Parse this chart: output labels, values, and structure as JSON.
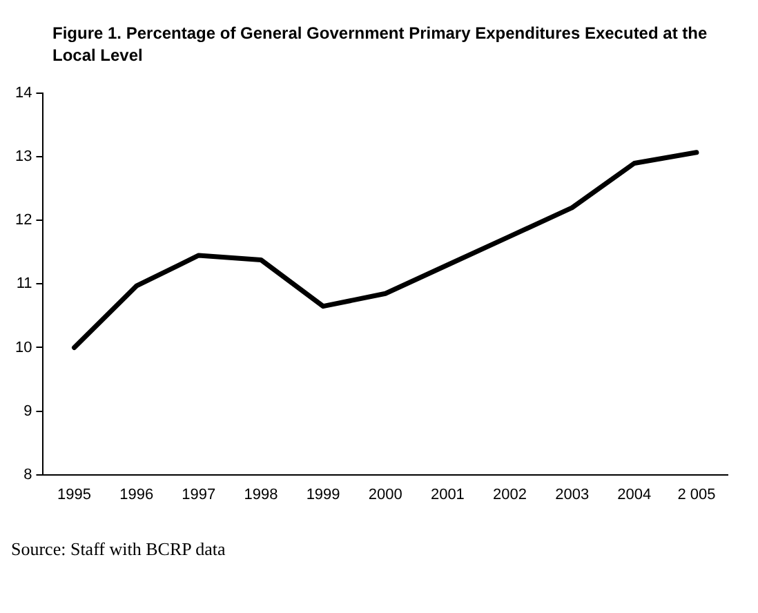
{
  "chart_data": {
    "type": "line",
    "title": "Figure 1. Percentage of General Government Primary Expenditures Executed at the Local Level",
    "categories": [
      "1995",
      "1996",
      "1997",
      "1998",
      "1999",
      "2000",
      "2001",
      "2002",
      "2003",
      "2004",
      "2 005"
    ],
    "series": [
      {
        "color": "#000000",
        "values": [
          10.0,
          10.97,
          11.45,
          11.38,
          10.65,
          10.85,
          11.3,
          11.75,
          12.2,
          12.9,
          13.07
        ]
      }
    ],
    "ylim": [
      8,
      14
    ],
    "yticks": [
      8,
      9,
      10,
      11,
      12,
      13,
      14
    ],
    "grid": false,
    "legend": false,
    "marker": "none",
    "line_style": "solid",
    "annotations": [
      "Source: Staff with BCRP data"
    ]
  }
}
